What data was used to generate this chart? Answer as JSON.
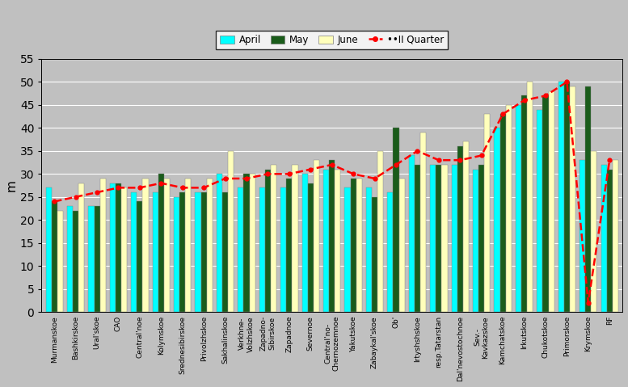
{
  "categories": [
    "Murmanskoe",
    "Bashkirskoe",
    "Ural'skoe",
    "CAO",
    "Central'noe",
    "Kolymskoe",
    "Srednesibirskoe",
    "Privolzhskoe",
    "Sakhalinskoe",
    "Verkhne-\nVolzhskoe",
    "Zapadno-\nSibirskoe",
    "Zapadnoe",
    "Severnoe",
    "Central'no-\nChernozemnoe",
    "Yakutskoe",
    "Zabaykal'skoe",
    "Ob'",
    "Irtyshshskoe",
    "resp.Tatarstan",
    "Dal'nevostochnoe",
    "Sev.-\nKavkazskoe",
    "Kamchatskoe",
    "Irkutskoe",
    "Chukotskoe",
    "Primorskoe",
    "Krymskoe",
    "RF"
  ],
  "april": [
    27,
    23,
    23,
    28,
    26,
    26,
    25,
    26,
    30,
    27,
    27,
    27,
    30,
    31,
    27,
    27,
    26,
    34,
    32,
    32,
    31,
    40,
    45,
    44,
    50,
    33,
    32
  ],
  "may": [
    24,
    22,
    23,
    28,
    24,
    30,
    26,
    26,
    26,
    30,
    31,
    29,
    28,
    33,
    29,
    25,
    40,
    32,
    32,
    36,
    32,
    43,
    47,
    47,
    50,
    49,
    31
  ],
  "june": [
    22,
    28,
    29,
    27,
    29,
    29,
    29,
    29,
    35,
    30,
    32,
    32,
    33,
    31,
    29,
    35,
    29,
    39,
    32,
    37,
    43,
    45,
    50,
    48,
    49,
    35,
    33
  ],
  "ii_quarter": [
    24,
    25,
    26,
    27,
    27,
    28,
    27,
    27,
    29,
    29,
    30,
    30,
    31,
    32,
    30,
    29,
    32,
    35,
    33,
    33,
    34,
    43,
    46,
    47,
    50,
    2,
    33
  ],
  "color_april": "#00FFFF",
  "color_may": "#1A5C1A",
  "color_june": "#FFFFBB",
  "color_line": "#FF0000",
  "bg_color": "#C0C0C0",
  "ylim": [
    0,
    55
  ],
  "yticks": [
    0,
    5,
    10,
    15,
    20,
    25,
    30,
    35,
    40,
    45,
    50,
    55
  ],
  "ylabel": "m"
}
